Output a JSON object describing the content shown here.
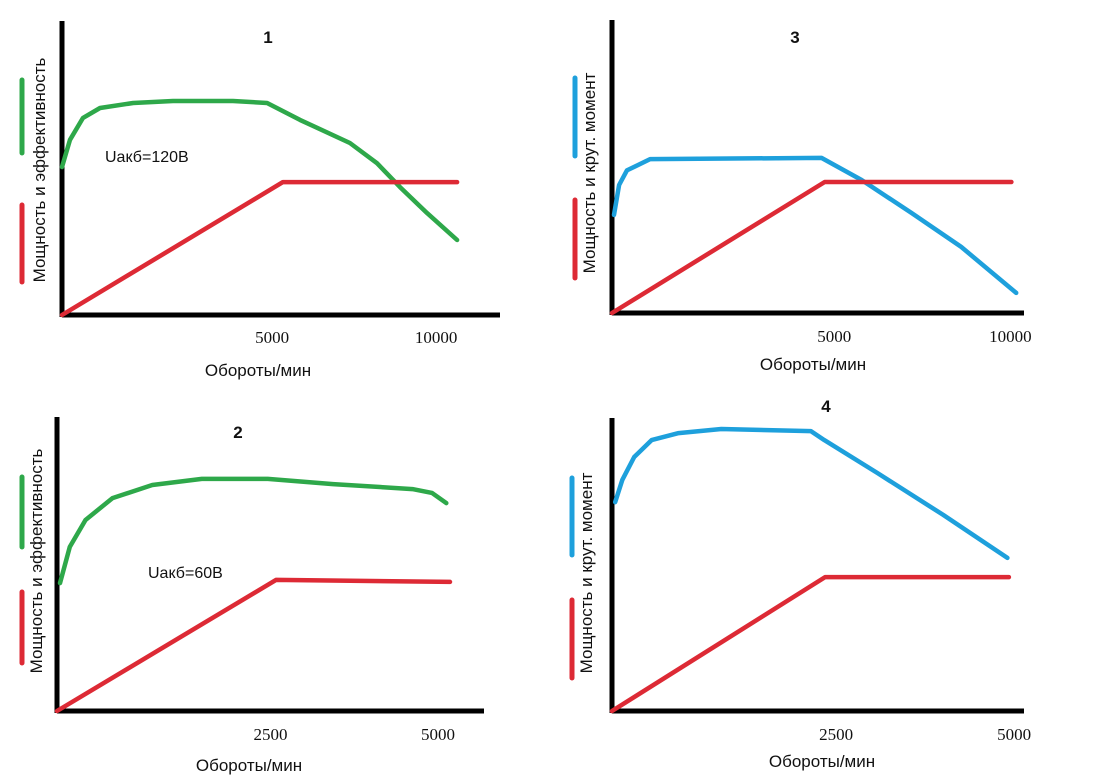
{
  "colors": {
    "green": "#2ea84a",
    "red": "#dd2a35",
    "blue": "#1ea0dc",
    "axis": "#000000"
  },
  "chart_data": [
    {
      "type": "line",
      "title": "1",
      "xlabel": "Обороты/мин",
      "ylabel": "Мощность и эффективность",
      "annotation": "Uакб=120В",
      "xlim": [
        0,
        11000
      ],
      "ylim": [
        0,
        100
      ],
      "grid": false,
      "xticks": [
        {
          "value": 5000,
          "label": "5000"
        },
        {
          "value": 10000,
          "label": "10000"
        }
      ],
      "legend": [
        {
          "name": "эффективность",
          "color": "green"
        },
        {
          "name": "мощность",
          "color": "red"
        }
      ],
      "series": [
        {
          "name": "эффективность",
          "color": "green",
          "x": [
            0,
            217,
            570,
            1032,
            1930,
            3015,
            4645,
            5570,
            6465,
            7820,
            8555,
            9180,
            9915,
            10730
          ],
          "y": [
            50.7,
            60,
            67.5,
            70.9,
            72.6,
            73.3,
            73.3,
            72.6,
            66.8,
            58.9,
            52,
            43.8,
            34.9,
            25.7
          ]
        },
        {
          "name": "мощность",
          "color": "red",
          "x": [
            0,
            6000,
            10730
          ],
          "y": [
            0,
            45.5,
            45.5
          ]
        }
      ]
    },
    {
      "type": "line",
      "title": "2",
      "xlabel": "Обороты/мин",
      "ylabel": "Мощность и эффективность",
      "annotation": "Uакб=60В",
      "xlim": [
        0,
        5400
      ],
      "ylim": [
        0,
        100
      ],
      "grid": false,
      "xticks": [
        {
          "value": 2500,
          "label": "2500"
        },
        {
          "value": 5000,
          "label": "5000"
        }
      ],
      "legend": [
        {
          "name": "эффективность",
          "color": "green"
        },
        {
          "name": "мощность",
          "color": "red"
        }
      ],
      "series": [
        {
          "name": "эффективность",
          "color": "green",
          "x": [
            40,
            170,
            380,
            740,
            1270,
            1930,
            2810,
            3680,
            4740,
            5000,
            5190
          ],
          "y": [
            43.8,
            56.2,
            65.4,
            72.9,
            77.4,
            79.5,
            79.5,
            77.7,
            76,
            74.7,
            71.2
          ]
        },
        {
          "name": "мощность",
          "color": "red",
          "x": [
            0,
            2920,
            5240
          ],
          "y": [
            0,
            44.9,
            44.2
          ]
        }
      ]
    },
    {
      "type": "line",
      "title": "3",
      "xlabel": "Обороты/мин",
      "ylabel": "Мощность и крут. момент",
      "xlim": [
        0,
        10500
      ],
      "ylim": [
        0,
        100
      ],
      "grid": false,
      "xticks": [
        {
          "value": 5000,
          "label": "5000"
        },
        {
          "value": 10000,
          "label": "10000"
        }
      ],
      "legend": [
        {
          "name": "крут. момент",
          "color": "blue"
        },
        {
          "name": "мощность",
          "color": "red"
        }
      ],
      "series": [
        {
          "name": "крут. момент",
          "color": "blue",
          "x": [
            50,
            180,
            380,
            970,
            5340,
            6360,
            7630,
            8900,
            10300
          ],
          "y": [
            33.7,
            44,
            49,
            52.9,
            53.3,
            45.7,
            34.4,
            22.7,
            6.9
          ]
        },
        {
          "name": "мощность",
          "color": "red",
          "x": [
            0,
            5420,
            10180
          ],
          "y": [
            0,
            45,
            45
          ]
        }
      ]
    },
    {
      "type": "line",
      "title": "4",
      "xlabel": "Обороты/мин",
      "ylabel": "Мощность и крут. момент",
      "xlim": [
        0,
        5200
      ],
      "ylim": [
        0,
        100
      ],
      "grid": false,
      "xticks": [
        {
          "value": 2500,
          "label": "2500"
        },
        {
          "value": 5000,
          "label": "5000"
        }
      ],
      "legend": [
        {
          "name": "крут. момент",
          "color": "blue"
        },
        {
          "name": "мощность",
          "color": "red"
        }
      ],
      "series": [
        {
          "name": "крут. момент",
          "color": "blue",
          "x": [
            40,
            130,
            280,
            500,
            840,
            1380,
            2510,
            2680,
            3350,
            4180,
            4990
          ],
          "y": [
            71.8,
            79.4,
            87.3,
            93.1,
            95.5,
            96.9,
            96.2,
            93.1,
            81.8,
            67.4,
            52.6
          ]
        },
        {
          "name": "мощность",
          "color": "red",
          "x": [
            0,
            2690,
            5010
          ],
          "y": [
            0,
            46,
            46
          ]
        }
      ]
    }
  ]
}
